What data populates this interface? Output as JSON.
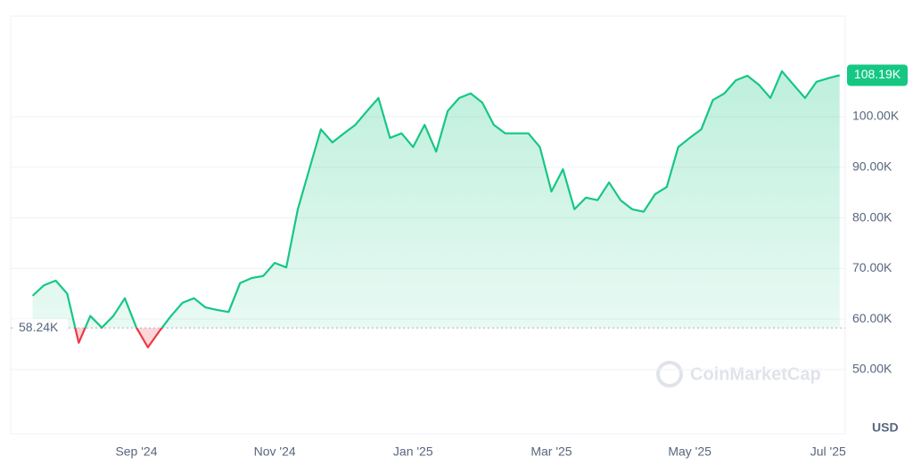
{
  "chart_data": {
    "type": "line",
    "categories": [
      null,
      null,
      null,
      null,
      null,
      null,
      null,
      null,
      null,
      "Sep '24",
      null,
      null,
      null,
      null,
      null,
      null,
      null,
      null,
      null,
      null,
      null,
      "Nov '24",
      null,
      null,
      null,
      null,
      null,
      null,
      null,
      null,
      null,
      null,
      null,
      "Jan '25",
      null,
      null,
      null,
      null,
      null,
      null,
      null,
      null,
      null,
      null,
      null,
      "Mar '25",
      null,
      null,
      null,
      null,
      null,
      null,
      null,
      null,
      null,
      null,
      null,
      "May '25",
      null,
      null,
      null,
      null,
      null,
      null,
      null,
      null,
      null,
      null,
      null,
      "Jul '25",
      null
    ],
    "values": [
      64600,
      66700,
      67600,
      65000,
      55300,
      60600,
      58300,
      60600,
      64100,
      58300,
      54400,
      57600,
      60600,
      63200,
      64100,
      62300,
      61800,
      61400,
      67100,
      68100,
      68500,
      71100,
      70200,
      81700,
      89600,
      97500,
      94900,
      96700,
      98400,
      101100,
      103700,
      95800,
      96700,
      94000,
      98400,
      93100,
      101100,
      103700,
      104600,
      102800,
      98400,
      96700,
      96700,
      96700,
      94000,
      85200,
      89600,
      81700,
      84000,
      83500,
      87000,
      83500,
      81700,
      81200,
      84700,
      86100,
      94000,
      95800,
      97500,
      103300,
      104600,
      107200,
      108100,
      106300,
      103700,
      109000,
      106300,
      103700,
      106900,
      107600,
      108190
    ],
    "value_labels": [
      null,
      null,
      null,
      null,
      null,
      null,
      null,
      null,
      null,
      null,
      null,
      null,
      null,
      null,
      null,
      null,
      null,
      null,
      null,
      null,
      null,
      null,
      null,
      null,
      null,
      null,
      null,
      null,
      null,
      null,
      null,
      null,
      null,
      null,
      null,
      null,
      null,
      null,
      null,
      null,
      null,
      null,
      null,
      null,
      null,
      null,
      null,
      null,
      null,
      null,
      null,
      null,
      null,
      null,
      null,
      null,
      null,
      null,
      null,
      null,
      null,
      null,
      null,
      null,
      null,
      null,
      null,
      null,
      null,
      null,
      "108.19K"
    ],
    "color": "#16c784",
    "down_color": "#ea3943",
    "reference_line": {
      "value": 58240,
      "label": "58.24K"
    },
    "ylim": [
      37300,
      119900
    ],
    "yticks": [
      {
        "value": 50000,
        "label": "50.00K"
      },
      {
        "value": 60000,
        "label": "60.00K"
      },
      {
        "value": 70000,
        "label": "70.00K"
      },
      {
        "value": 80000,
        "label": "80.00K"
      },
      {
        "value": 90000,
        "label": "90.00K"
      },
      {
        "value": 100000,
        "label": "100.00K"
      }
    ],
    "grid": true,
    "currency": "USD",
    "watermark": "CoinMarketCap"
  }
}
